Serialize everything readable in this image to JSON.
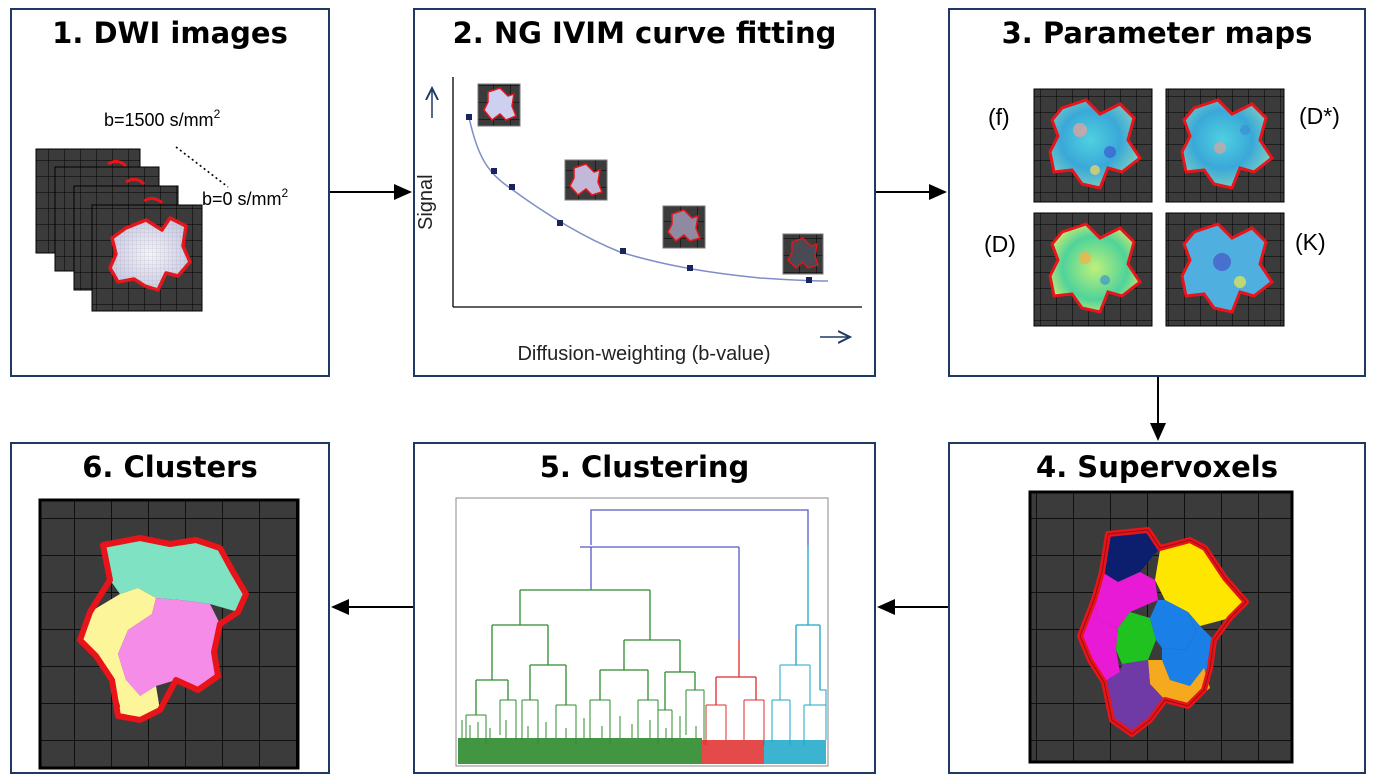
{
  "panels": {
    "p1": {
      "title": "1. DWI images",
      "b_high": "b=1500 s/mm",
      "b_low": "b=0 s/mm",
      "sup": "2"
    },
    "p2": {
      "title": "2. NG IVIM curve fitting",
      "ylabel": "Signal",
      "xlabel": "Diffusion-weighting (b-value)"
    },
    "p3": {
      "title": "3. Parameter maps",
      "labels": [
        "(f)",
        "(D*)",
        "(D)",
        "(K)"
      ]
    },
    "p4": {
      "title": "4. Supervoxels"
    },
    "p5": {
      "title": "5. Clustering"
    },
    "p6": {
      "title": "6. Clusters"
    }
  },
  "colors": {
    "border": "#1f3864",
    "grid_bg": "#3b3b3b",
    "outline": "#e8141a",
    "tumor": "#d4d4ee",
    "curve": "#7f8ec6",
    "point": "#17255c",
    "dendro_blue": "#5858c8",
    "dendro_green": "#2e8b2e",
    "dendro_red": "#e02a2a",
    "dendro_cyan": "#1aa6c9",
    "cluster_mint": "#7fe3c3",
    "cluster_yellow": "#fdf59a",
    "cluster_pink": "#f48ce8",
    "sv_navy": "#0c1f6e",
    "sv_yellow": "#ffe600",
    "sv_magenta": "#e81ad6",
    "sv_green": "#1fc21f",
    "sv_blue": "#1a7fe6",
    "sv_orange": "#f5a91e",
    "sv_purple": "#6f3aa6"
  }
}
